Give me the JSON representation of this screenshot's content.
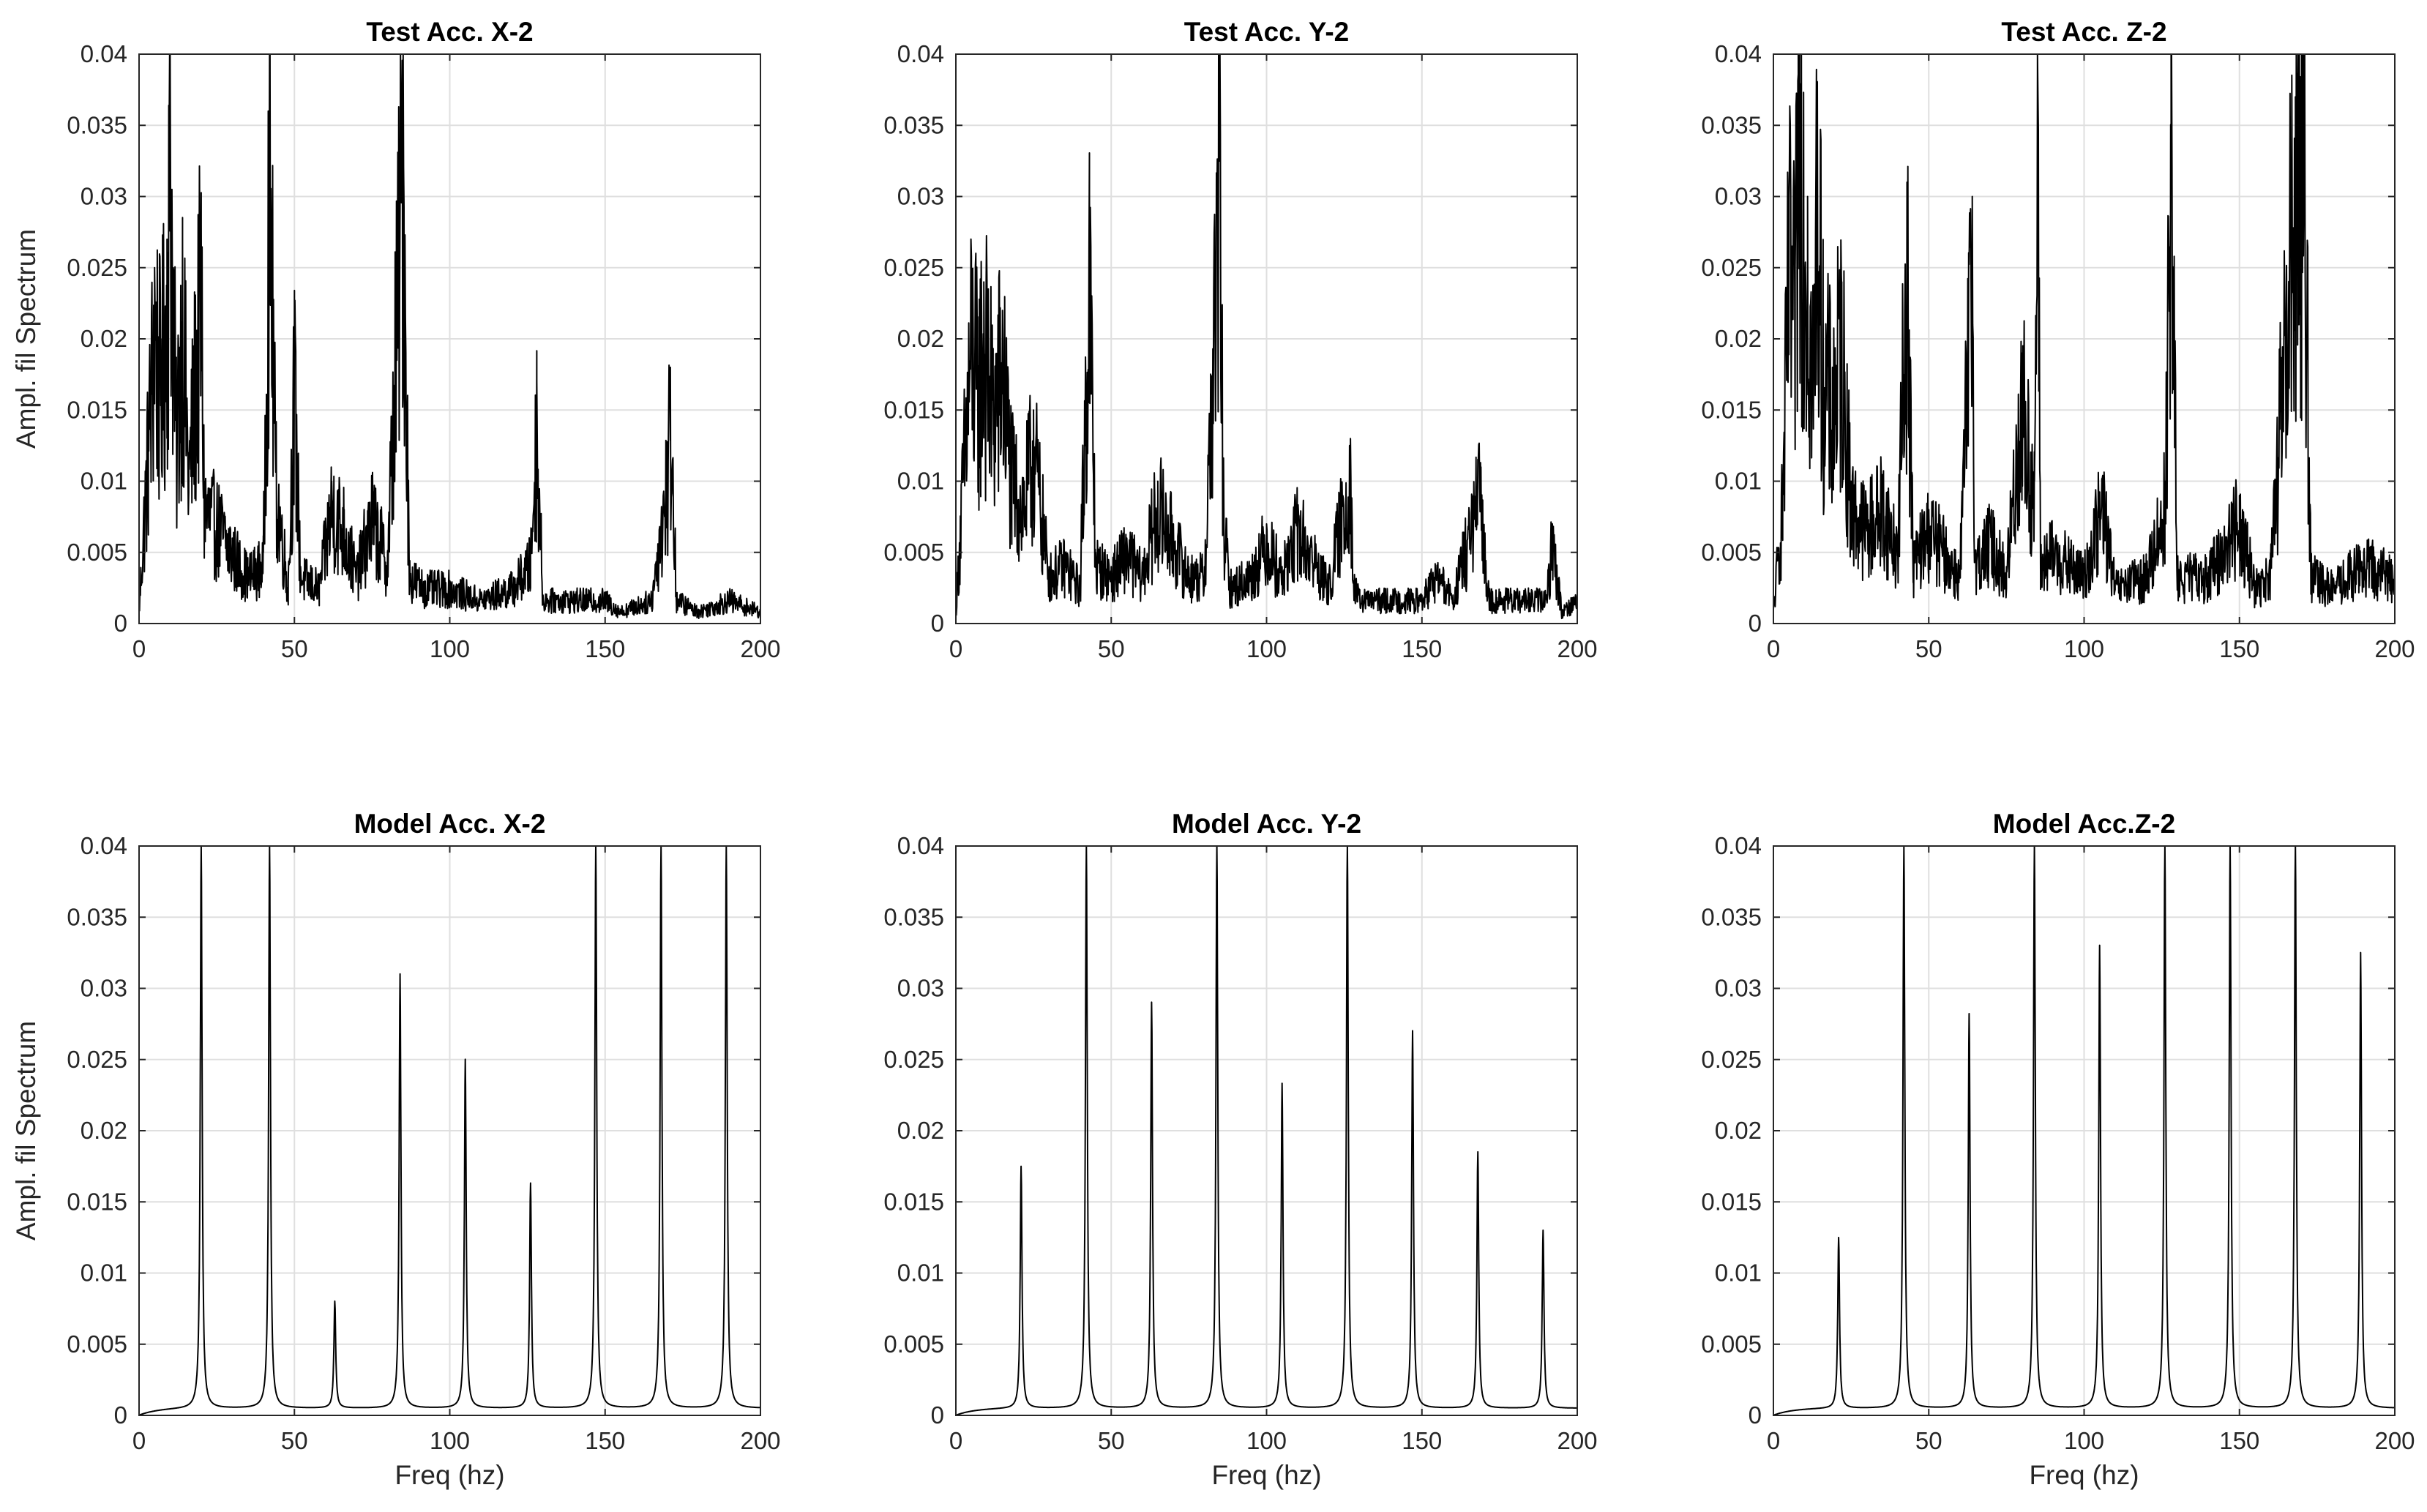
{
  "chart_data": [
    {
      "type": "line",
      "title": "Test Acc. X-2",
      "xlabel": "",
      "ylabel": "Ampl. fil Spectrum",
      "xlim": [
        0,
        200
      ],
      "ylim": [
        0,
        0.04
      ],
      "grid": true,
      "xticks": [
        "0",
        "50",
        "100",
        "150",
        "200"
      ],
      "yticks": [
        "0",
        "0.005",
        "0.01",
        "0.015",
        "0.02",
        "0.025",
        "0.03",
        "0.035",
        "0.04"
      ],
      "series": [
        {
          "x": [
            0,
            3,
            5,
            7,
            9,
            10,
            12,
            14,
            16,
            18,
            20,
            21,
            23,
            26,
            30,
            35,
            40,
            42,
            44,
            48,
            50,
            52,
            58,
            62,
            66,
            70,
            75,
            80,
            85,
            87,
            92,
            100,
            110,
            120,
            126,
            128,
            130,
            135,
            145,
            150,
            155,
            165,
            170,
            171,
            173,
            180,
            190,
            200
          ],
          "y": [
            0.001,
            0.015,
            0.025,
            0.02,
            0.027,
            0.04,
            0.015,
            0.027,
            0.012,
            0.02,
            0.028,
            0.01,
            0.009,
            0.008,
            0.006,
            0.004,
            0.005,
            0.04,
            0.012,
            0.003,
            0.02,
            0.004,
            0.003,
            0.01,
            0.008,
            0.004,
            0.009,
            0.005,
            0.04,
            0.004,
            0.003,
            0.003,
            0.002,
            0.003,
            0.005,
            0.017,
            0.002,
            0.002,
            0.002,
            0.002,
            0.001,
            0.002,
            0.012,
            0.018,
            0.002,
            0.001,
            0.002,
            0.001
          ]
        }
      ]
    },
    {
      "type": "line",
      "title": "Test Acc. Y-2",
      "xlabel": "",
      "ylabel": "",
      "xlim": [
        0,
        200
      ],
      "ylim": [
        0,
        0.04
      ],
      "grid": true,
      "xticks": [
        "0",
        "50",
        "100",
        "150",
        "200"
      ],
      "yticks": [
        "0",
        "0.005",
        "0.01",
        "0.015",
        "0.02",
        "0.025",
        "0.03",
        "0.035",
        "0.04"
      ],
      "series": [
        {
          "x": [
            0,
            3,
            5,
            7,
            9,
            12,
            15,
            18,
            22,
            25,
            30,
            35,
            40,
            43,
            45,
            50,
            55,
            60,
            65,
            70,
            75,
            80,
            84,
            85,
            86,
            88,
            95,
            100,
            105,
            110,
            120,
            127,
            128,
            130,
            140,
            150,
            155,
            160,
            169,
            170,
            172,
            180,
            190,
            192,
            195,
            200
          ],
          "y": [
            0.001,
            0.015,
            0.024,
            0.02,
            0.024,
            0.018,
            0.022,
            0.012,
            0.01,
            0.015,
            0.004,
            0.005,
            0.003,
            0.03,
            0.005,
            0.004,
            0.006,
            0.004,
            0.01,
            0.007,
            0.004,
            0.004,
            0.03,
            0.04,
            0.01,
            0.003,
            0.004,
            0.007,
            0.004,
            0.008,
            0.003,
            0.013,
            0.003,
            0.002,
            0.002,
            0.002,
            0.004,
            0.002,
            0.011,
            0.006,
            0.002,
            0.002,
            0.002,
            0.007,
            0.001,
            0.002
          ]
        }
      ]
    },
    {
      "type": "line",
      "title": "Test Acc. Z-2",
      "xlabel": "",
      "ylabel": "",
      "xlim": [
        0,
        200
      ],
      "ylim": [
        0,
        0.04
      ],
      "grid": true,
      "xticks": [
        "0",
        "50",
        "100",
        "150",
        "200"
      ],
      "yticks": [
        "0",
        "0.005",
        "0.01",
        "0.015",
        "0.02",
        "0.025",
        "0.03",
        "0.035",
        "0.04"
      ],
      "series": [
        {
          "x": [
            0,
            3,
            5,
            7,
            8,
            9,
            11,
            13,
            14,
            16,
            19,
            22,
            25,
            30,
            35,
            40,
            43,
            45,
            50,
            55,
            60,
            64,
            65,
            70,
            75,
            80,
            84,
            85,
            86,
            90,
            100,
            106,
            110,
            120,
            126,
            128,
            130,
            140,
            150,
            155,
            160,
            168,
            170,
            171,
            173,
            180,
            190,
            200
          ],
          "y": [
            0.001,
            0.01,
            0.03,
            0.025,
            0.04,
            0.04,
            0.03,
            0.02,
            0.038,
            0.022,
            0.018,
            0.024,
            0.01,
            0.008,
            0.01,
            0.006,
            0.031,
            0.005,
            0.008,
            0.006,
            0.004,
            0.03,
            0.005,
            0.007,
            0.004,
            0.019,
            0.01,
            0.04,
            0.005,
            0.006,
            0.004,
            0.01,
            0.003,
            0.004,
            0.01,
            0.04,
            0.004,
            0.004,
            0.009,
            0.003,
            0.004,
            0.037,
            0.04,
            0.04,
            0.004,
            0.003,
            0.005,
            0.004
          ]
        }
      ]
    },
    {
      "type": "line",
      "title": "Model Acc. X-2",
      "xlabel": "Freq (hz)",
      "ylabel": "Ampl. fil Spectrum",
      "xlim": [
        0,
        200
      ],
      "ylim": [
        0,
        0.04
      ],
      "grid": true,
      "xticks": [
        "0",
        "50",
        "100",
        "150",
        "200"
      ],
      "yticks": [
        "0",
        "0.005",
        "0.01",
        "0.015",
        "0.02",
        "0.025",
        "0.03",
        "0.035",
        "0.04"
      ],
      "series": [
        {
          "peaks": [
            {
              "x": 20,
              "y": 0.04
            },
            {
              "x": 42,
              "y": 0.04
            },
            {
              "x": 63,
              "y": 0.0075
            },
            {
              "x": 84,
              "y": 0.0305
            },
            {
              "x": 105,
              "y": 0.0245
            },
            {
              "x": 126,
              "y": 0.0158
            },
            {
              "x": 147,
              "y": 0.04
            },
            {
              "x": 168,
              "y": 0.04
            },
            {
              "x": 189,
              "y": 0.04
            }
          ],
          "baseline": 0.0005
        }
      ]
    },
    {
      "type": "line",
      "title": "Model Acc. Y-2",
      "xlabel": "Freq (hz)",
      "ylabel": "",
      "xlim": [
        0,
        200
      ],
      "ylim": [
        0,
        0.04
      ],
      "grid": true,
      "xticks": [
        "0",
        "50",
        "100",
        "150",
        "200"
      ],
      "yticks": [
        "0",
        "0.005",
        "0.01",
        "0.015",
        "0.02",
        "0.025",
        "0.03",
        "0.035",
        "0.04"
      ],
      "series": [
        {
          "peaks": [
            {
              "x": 21,
              "y": 0.017
            },
            {
              "x": 42,
              "y": 0.04
            },
            {
              "x": 63,
              "y": 0.0285
            },
            {
              "x": 84,
              "y": 0.04
            },
            {
              "x": 105,
              "y": 0.0228
            },
            {
              "x": 126,
              "y": 0.04
            },
            {
              "x": 147,
              "y": 0.0265
            },
            {
              "x": 168,
              "y": 0.018
            },
            {
              "x": 189,
              "y": 0.0125
            }
          ],
          "baseline": 0.0005
        }
      ]
    },
    {
      "type": "line",
      "title": "Model Acc.Z-2",
      "xlabel": "Freq (hz)",
      "ylabel": "",
      "xlim": [
        0,
        200
      ],
      "ylim": [
        0,
        0.04
      ],
      "grid": true,
      "xticks": [
        "0",
        "50",
        "100",
        "150",
        "200"
      ],
      "yticks": [
        "0",
        "0.005",
        "0.01",
        "0.015",
        "0.02",
        "0.025",
        "0.03",
        "0.035",
        "0.04"
      ],
      "series": [
        {
          "peaks": [
            {
              "x": 21,
              "y": 0.012
            },
            {
              "x": 42,
              "y": 0.04
            },
            {
              "x": 63,
              "y": 0.0277
            },
            {
              "x": 84,
              "y": 0.04
            },
            {
              "x": 105,
              "y": 0.0325
            },
            {
              "x": 126,
              "y": 0.04
            },
            {
              "x": 147,
              "y": 0.04
            },
            {
              "x": 168,
              "y": 0.04
            },
            {
              "x": 189,
              "y": 0.032
            }
          ],
          "baseline": 0.0005
        }
      ]
    }
  ]
}
